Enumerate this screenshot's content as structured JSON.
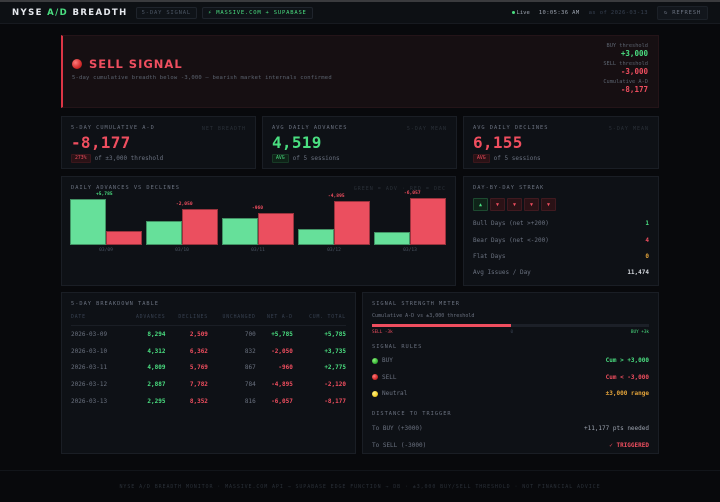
{
  "header": {
    "brand_prefix": "NYSE ",
    "brand_accent": "A/D",
    "brand_suffix": " BREADTH",
    "pill_signal": "5-DAY SIGNAL",
    "pill_source": "⚡ MASSIVE.COM + SUPABASE",
    "live_label": "Live",
    "clock": "10:05:36 AM",
    "as_of": "as of 2026-03-13",
    "refresh_label": "↻ REFRESH"
  },
  "banner": {
    "signal": "SELL SIGNAL",
    "subtitle": "5-day cumulative breadth below -3,000 — bearish market internals confirmed",
    "buy_threshold_label": "BUY threshold",
    "buy_threshold_value": "+3,000",
    "sell_threshold_label": "SELL threshold",
    "sell_threshold_value": "-3,000",
    "cumulative_label": "Cumulative A-D",
    "cumulative_value": "-8,177"
  },
  "kpis": [
    {
      "label": "5-DAY CUMULATIVE A-D",
      "tag": "NET BREADTH",
      "value": "-8,177",
      "badge": "273%",
      "sub": "of ±3,000 threshold"
    },
    {
      "label": "AVG DAILY ADVANCES",
      "tag": "5-DAY MEAN",
      "value": "4,519",
      "badge": "AVG",
      "sub": "of 5 sessions"
    },
    {
      "label": "AVG DAILY DECLINES",
      "tag": "5-DAY MEAN",
      "value": "6,155",
      "badge": "AVG",
      "sub": "of 5 sessions"
    }
  ],
  "chart": {
    "title": "DAILY ADVANCES VS DECLINES",
    "legend": "GREEN = ADV · RED = DEC"
  },
  "chart_data": {
    "type": "bar",
    "title": "DAILY ADVANCES VS DECLINES",
    "categories": [
      "03/09",
      "03/10",
      "03/11",
      "03/12",
      "03/13"
    ],
    "series": [
      {
        "name": "Advances",
        "color": "#66e09a",
        "values": [
          8294,
          4312,
          4809,
          2887,
          2295
        ]
      },
      {
        "name": "Declines",
        "color": "#eb4f5f",
        "values": [
          2509,
          6362,
          5769,
          7782,
          8352
        ]
      }
    ],
    "annotations": [
      "+5,785",
      "-2,050",
      "-960",
      "-4,895",
      "-6,057"
    ],
    "legend": "GREEN = ADV · RED = DEC",
    "xlabel": "",
    "ylabel": "",
    "grid": false
  },
  "streak": {
    "title": "DAY-BY-DAY STREAK",
    "days": [
      "▲",
      "▼",
      "▼",
      "▼",
      "▼"
    ],
    "bull_label": "Bull Days (net >+200)",
    "bull_value": "1",
    "bear_label": "Bear Days (net <-200)",
    "bear_value": "4",
    "flat_label": "Flat Days",
    "flat_value": "0",
    "avg_label": "Avg Issues / Day",
    "avg_value": "11,474"
  },
  "table": {
    "title": "5-DAY BREAKDOWN TABLE",
    "columns": [
      "DATE",
      "ADVANCES",
      "DECLINES",
      "UNCHANGED",
      "NET A-D",
      "CUM. TOTAL"
    ],
    "rows": [
      [
        "2026-03-09",
        "8,294",
        "2,509",
        "700",
        "+5,785",
        "+5,785"
      ],
      [
        "2026-03-10",
        "4,312",
        "6,362",
        "832",
        "-2,050",
        "+3,735"
      ],
      [
        "2026-03-11",
        "4,809",
        "5,769",
        "867",
        "-960",
        "+2,775"
      ],
      [
        "2026-03-12",
        "2,887",
        "7,782",
        "784",
        "-4,895",
        "-2,120"
      ],
      [
        "2026-03-13",
        "2,295",
        "8,352",
        "816",
        "-6,057",
        "-8,177"
      ]
    ]
  },
  "meter": {
    "title": "SIGNAL STRENGTH METER",
    "subtitle": "Cumulative A-D vs ±3,000 threshold",
    "left_label": "SELL -3k",
    "mid_label": "0",
    "right_label": "BUY +3k",
    "fill_percent": 50,
    "rules_title": "SIGNAL RULES",
    "rules": [
      {
        "name": "BUY",
        "rule": "Cum > +3,000"
      },
      {
        "name": "SELL",
        "rule": "Cum < -3,000"
      },
      {
        "name": "Neutral",
        "rule": "±3,000 range"
      }
    ],
    "distance_title": "DISTANCE TO TRIGGER",
    "to_buy_label": "To BUY (+3000)",
    "to_buy_value": "+11,177 pts needed",
    "to_sell_label": "To SELL (-3000)",
    "to_sell_value": "✓ TRIGGERED"
  },
  "footer": {
    "text": "NYSE A/D BREADTH MONITOR · MASSIVE.COM API → SUPABASE EDGE FUNCTION → DB · ±3,000 BUY/SELL THRESHOLD · NOT FINANCIAL ADVICE"
  }
}
